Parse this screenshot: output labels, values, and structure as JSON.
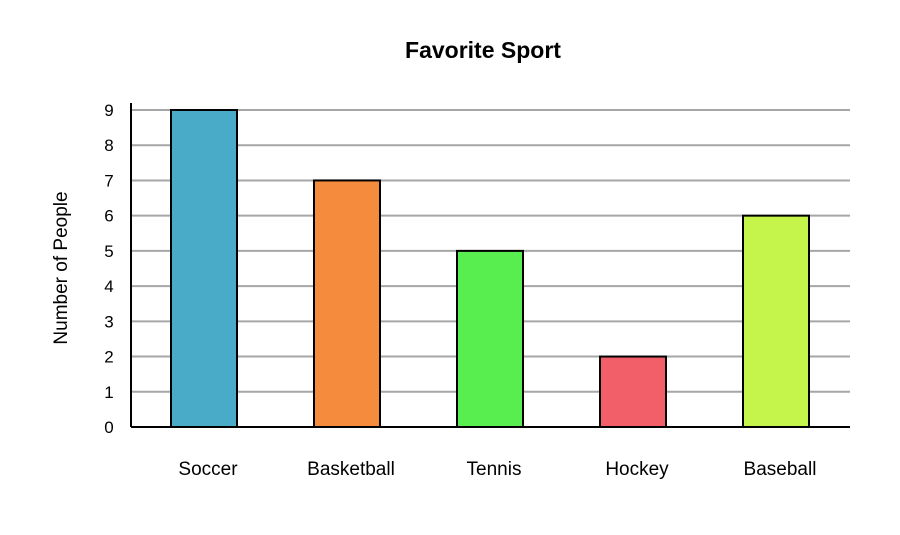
{
  "chart_data": {
    "type": "bar",
    "title": "Favorite Sport",
    "xlabel": "",
    "ylabel": "Number of People",
    "categories": [
      "Soccer",
      "Basketball",
      "Tennis",
      "Hockey",
      "Baseball"
    ],
    "values": [
      9,
      7,
      5,
      2,
      6
    ],
    "colors": [
      "#4aabc9",
      "#f58c3d",
      "#58ee4f",
      "#f25f68",
      "#c5f54a"
    ],
    "yticks": [
      "0",
      "1",
      "2",
      "3",
      "4",
      "5",
      "6",
      "7",
      "8",
      "9"
    ],
    "ylim": [
      0,
      9
    ],
    "grid": true,
    "grid_color": "#a6a6a6",
    "legend": "none"
  }
}
